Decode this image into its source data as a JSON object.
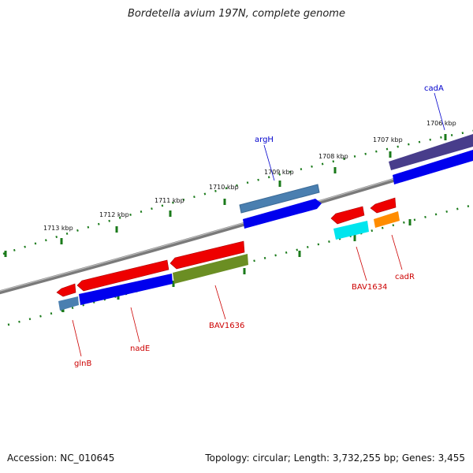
{
  "title": "Bordetella avium 197N, complete genome",
  "footer": {
    "accession": "Accession: NC_010645",
    "topology": "Topology: circular; Length: 3,732,255 bp; Genes: 3,455"
  },
  "ticks": [
    "1713 kbp",
    "1712 kbp",
    "1711 kbp",
    "1710 kbp",
    "1709 kbp",
    "1708 kbp",
    "1707 kbp",
    "1706 kbp"
  ],
  "genes": [
    {
      "name": "gene-glnb",
      "label": "glnB",
      "color": "#cc0000"
    },
    {
      "name": "gene-nade",
      "label": "nadE",
      "color": "#cc0000"
    },
    {
      "name": "gene-bav1636",
      "label": "BAV1636",
      "color": "#cc0000"
    },
    {
      "name": "gene-argh",
      "label": "argH",
      "color": "#0000cc"
    },
    {
      "name": "gene-bav1634",
      "label": "BAV1634",
      "color": "#cc0000"
    },
    {
      "name": "gene-cadr",
      "label": "cadR",
      "color": "#cc0000"
    },
    {
      "name": "gene-cada",
      "label": "cadA",
      "color": "#0000cc"
    }
  ],
  "colors": {
    "backbone": "#808080",
    "dots": "#1a7a1a",
    "red_feature": "#ee0000",
    "blue_cds": "#0000ee",
    "steel": "#4a7fb0",
    "olive": "#6b8e23",
    "cyan": "#00e5ee",
    "orange": "#ff8c00",
    "purple": "#483d8b"
  }
}
